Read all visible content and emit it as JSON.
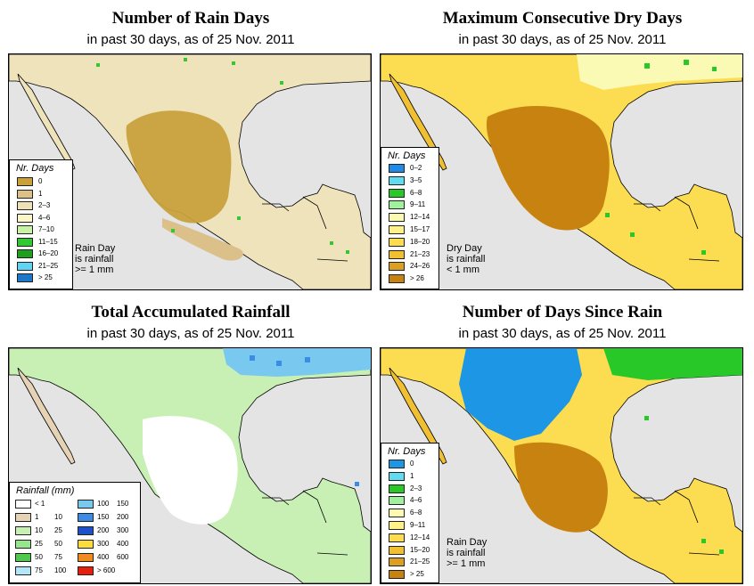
{
  "date": "25 Nov. 2011",
  "panels": {
    "rain_days": {
      "title": "Number of Rain Days",
      "subtitle": "in past 30 days, as of  25 Nov. 2011",
      "legend_title": "Nr. Days",
      "legend": [
        {
          "label": "0",
          "color": "#c8a13c"
        },
        {
          "label": "1",
          "color": "#dcc08a"
        },
        {
          "label": "2–3",
          "color": "#efe0b8"
        },
        {
          "label": "4–6",
          "color": "#fcf7c8"
        },
        {
          "label": "7–10",
          "color": "#c8f2a8"
        },
        {
          "label": "11–15",
          "color": "#32c832"
        },
        {
          "label": "16–20",
          "color": "#1ea01e"
        },
        {
          "label": "21–25",
          "color": "#5fd4f4"
        },
        {
          "label": "> 25",
          "color": "#1e78c8"
        }
      ],
      "note": [
        "Rain Day",
        "is rainfall",
        ">= 1 mm"
      ]
    },
    "dry_days": {
      "title": "Maximum Consecutive Dry Days",
      "subtitle": "in past 30 days, as of  25 Nov. 2011",
      "legend_title": "Nr. Days",
      "legend": [
        {
          "label": "0–2",
          "color": "#1e8ce6"
        },
        {
          "label": "3–5",
          "color": "#5fdcf0"
        },
        {
          "label": "6–8",
          "color": "#28c828"
        },
        {
          "label": "9–11",
          "color": "#a0f0a0"
        },
        {
          "label": "12–14",
          "color": "#fafab4"
        },
        {
          "label": "15–17",
          "color": "#fff08c"
        },
        {
          "label": "18–20",
          "color": "#fcdc50"
        },
        {
          "label": "21–23",
          "color": "#f0c032"
        },
        {
          "label": "24–26",
          "color": "#dca01e"
        },
        {
          "label": "> 26",
          "color": "#c8820f"
        }
      ],
      "note": [
        "Dry Day",
        "is rainfall",
        "< 1 mm"
      ]
    },
    "rainfall": {
      "title": "Total Accumulated Rainfall",
      "subtitle": "in past 30 days, as of  25 Nov. 2011",
      "legend_title": "Rainfall (mm)",
      "legend_left": [
        {
          "lo": "< 1",
          "hi": "",
          "color": "#ffffff"
        },
        {
          "lo": "1",
          "hi": "10",
          "color": "#e6d2b4"
        },
        {
          "lo": "10",
          "hi": "25",
          "color": "#c8f0b4"
        },
        {
          "lo": "25",
          "hi": "50",
          "color": "#96e68c"
        },
        {
          "lo": "50",
          "hi": "75",
          "color": "#50c850"
        },
        {
          "lo": "75",
          "hi": "100",
          "color": "#b4e6fa"
        }
      ],
      "legend_right": [
        {
          "lo": "100",
          "hi": "150",
          "color": "#78c8f0"
        },
        {
          "lo": "150",
          "hi": "200",
          "color": "#3c8ce6"
        },
        {
          "lo": "200",
          "hi": "300",
          "color": "#1e50c8"
        },
        {
          "lo": "300",
          "hi": "400",
          "color": "#fcdc3c"
        },
        {
          "lo": "400",
          "hi": "600",
          "color": "#f08c1e"
        },
        {
          "lo": "> 600",
          "hi": "",
          "color": "#e61e0a"
        }
      ]
    },
    "since_rain": {
      "title": "Number of Days Since Rain",
      "subtitle": "in past 30 days, as of  25 Nov. 2011",
      "legend_title": "Nr. Days",
      "legend": [
        {
          "label": "0",
          "color": "#1e96e6"
        },
        {
          "label": "1",
          "color": "#5fdcf0"
        },
        {
          "label": "2–3",
          "color": "#28c828"
        },
        {
          "label": "4–6",
          "color": "#a0f0a0"
        },
        {
          "label": "6–8",
          "color": "#fafab4"
        },
        {
          "label": "9–11",
          "color": "#fff08c"
        },
        {
          "label": "12–14",
          "color": "#fcdc50"
        },
        {
          "label": "15–20",
          "color": "#f0c032"
        },
        {
          "label": "21–25",
          "color": "#dca01e"
        },
        {
          "label": "> 25",
          "color": "#c8820f"
        }
      ],
      "note": [
        "Rain Day",
        "is rainfall",
        ">= 1 mm"
      ]
    }
  }
}
